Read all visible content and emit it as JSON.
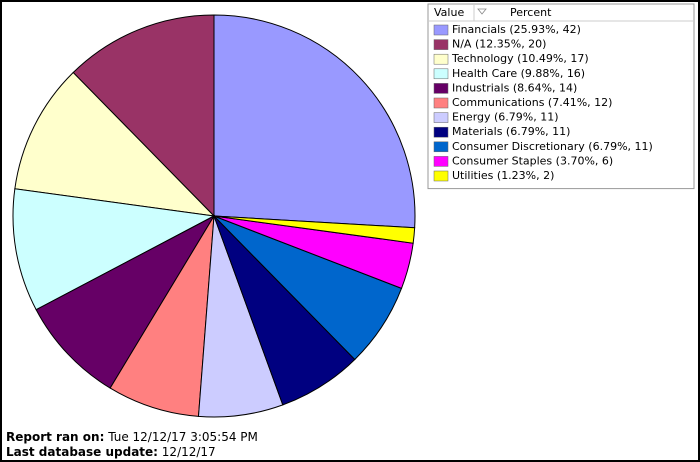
{
  "chart_data": {
    "type": "pie",
    "legend_header": [
      "Value",
      "Percent"
    ],
    "categories": [
      "Financials (25.93%, 42)",
      "N/A (12.35%, 20)",
      "Technology (10.49%, 17)",
      "Health Care (9.88%, 16)",
      "Industrials (8.64%, 14)",
      "Communications (7.41%, 12)",
      "Energy (6.79%, 11)",
      "Materials (6.79%, 11)",
      "Consumer Discretionary (6.79%, 11)",
      "Consumer Staples (3.70%, 6)",
      "Utilities (1.23%, 2)"
    ],
    "values": [
      25.93,
      12.35,
      10.49,
      9.88,
      8.64,
      7.41,
      6.79,
      6.79,
      6.79,
      3.7,
      1.23
    ],
    "colors": [
      "#9999ff",
      "#993366",
      "#ffffcc",
      "#ccffff",
      "#660066",
      "#ff8080",
      "#ccccff",
      "#000080",
      "#0066cc",
      "#ff00ff",
      "#ffff00"
    ],
    "legend": "top-right"
  },
  "footer": {
    "report_label": "Report ran on:",
    "report_value": "Tue 12/12/17 3:05:54 PM",
    "update_label": "Last database update:",
    "update_value": "12/12/17"
  }
}
